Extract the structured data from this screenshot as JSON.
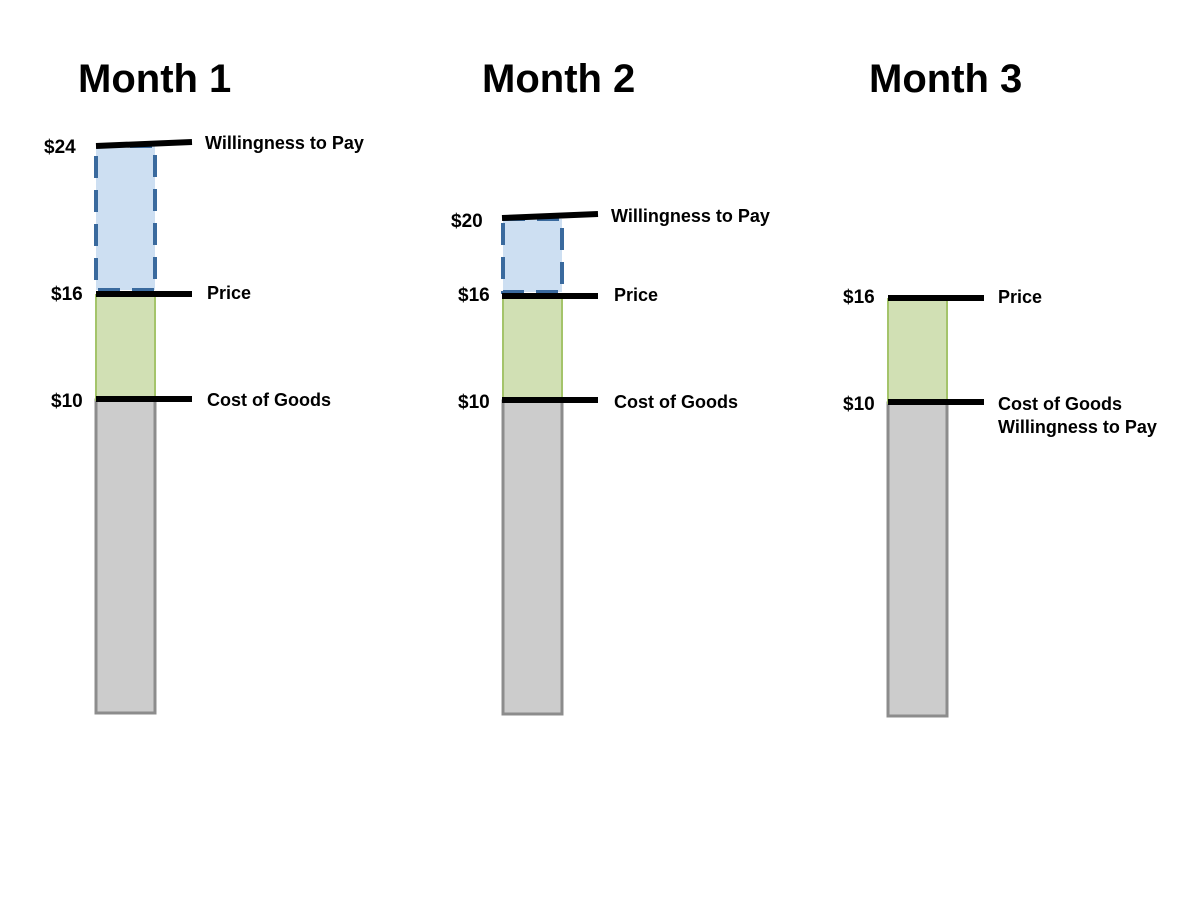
{
  "colors": {
    "cost_fill": "#cccccc",
    "cost_stroke": "#8c8c8c",
    "margin_fill": "#d1e0b4",
    "margin_stroke": "#a4c46a",
    "surplus_fill": "#cddff2",
    "surplus_stroke": "#3a6a9e",
    "marker": "#000000"
  },
  "months": [
    {
      "title": "Month 1",
      "levels": [
        {
          "value_label": "$24",
          "label": "Willingness to Pay"
        },
        {
          "value_label": "$16",
          "label": "Price"
        },
        {
          "value_label": "$10",
          "label": "Cost of Goods"
        }
      ]
    },
    {
      "title": "Month 2",
      "levels": [
        {
          "value_label": "$20",
          "label": "Willingness to Pay"
        },
        {
          "value_label": "$16",
          "label": "Price"
        },
        {
          "value_label": "$10",
          "label": "Cost of Goods"
        }
      ]
    },
    {
      "title": "Month 3",
      "levels": [
        {
          "value_label": "$16",
          "label": "Price"
        },
        {
          "value_label": "$10",
          "label": "Cost of Goods",
          "label_line2": "Willingness to Pay"
        }
      ]
    }
  ]
}
